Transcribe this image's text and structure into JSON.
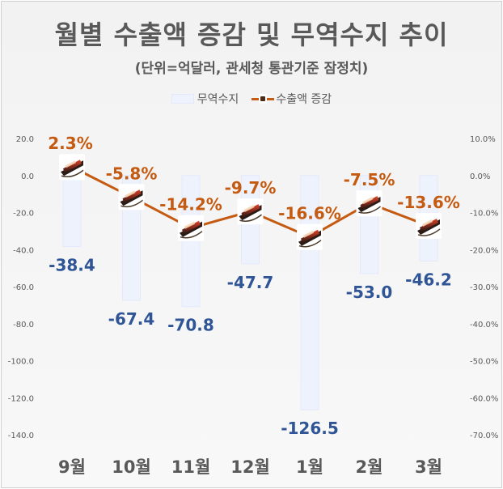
{
  "title": "월별 수출액 증감 및 무역수지 추이",
  "subtitle": "(단위=억달러, 관세청 통관기준 잠정치)",
  "legend": {
    "bar_label": "무역수지",
    "line_label": "수출액 증감"
  },
  "colors": {
    "bar_fill": "#eef2fd",
    "bar_stroke": "#e3e9fb",
    "line": "#c55a11",
    "bar_value_text": "#2f5597",
    "line_value_text": "#c55a11",
    "axis_text": "#595959"
  },
  "chart_data": {
    "type": "bar",
    "title": "월별 수출액 증감 및 무역수지 추이",
    "subtitle": "(단위=억달러, 관세청 통관기준 잠정치)",
    "categories": [
      "9월",
      "10월",
      "11월",
      "12월",
      "1월",
      "2월",
      "3월"
    ],
    "series": [
      {
        "name": "무역수지",
        "type": "bar",
        "axis": "left",
        "values": [
          -38.4,
          -67.4,
          -70.8,
          -47.7,
          -126.5,
          -53.0,
          -46.2
        ],
        "labels": [
          "-38.4",
          "-67.4",
          "-70.8",
          "-47.7",
          "-126.5",
          "-53.0",
          "-46.2"
        ]
      },
      {
        "name": "수출액 증감",
        "type": "line",
        "axis": "right",
        "values": [
          2.3,
          -5.8,
          -14.2,
          -9.7,
          -16.6,
          -7.5,
          -13.6
        ],
        "labels": [
          "2.3%",
          "-5.8%",
          "-14.2%",
          "-9.7%",
          "-16.6%",
          "-7.5%",
          "-13.6%"
        ]
      }
    ],
    "y_left": {
      "ylim": [
        -140,
        20
      ],
      "ticks": [
        "20.0",
        "0.0",
        "-20.0",
        "-40.0",
        "-60.0",
        "-80.0",
        "-100.0",
        "-120.0",
        "-140.0"
      ]
    },
    "y_right": {
      "ylim": [
        -70,
        10
      ],
      "ticks": [
        "10.0%",
        "0.0%",
        "-10.0%",
        "-20.0%",
        "-30.0%",
        "-40.0%",
        "-50.0%",
        "-60.0%",
        "-70.0%"
      ]
    },
    "grid": false,
    "legend_position": "top-center"
  }
}
